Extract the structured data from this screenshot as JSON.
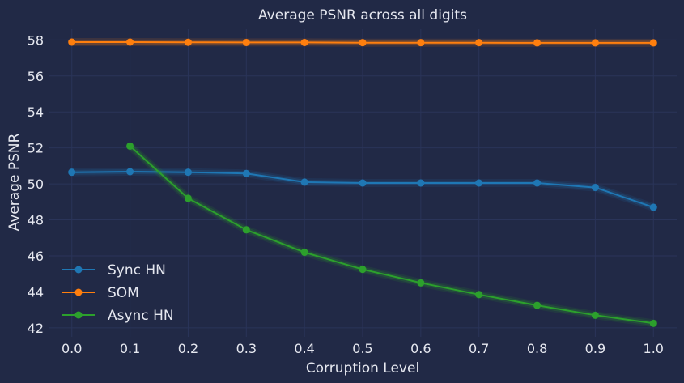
{
  "chart_data": {
    "type": "line",
    "title": "Average PSNR across all digits",
    "xlabel": "Corruption Level",
    "ylabel": "Average PSNR",
    "xlim": [
      -0.04,
      1.04
    ],
    "ylim": [
      41.5,
      58.6
    ],
    "xticks": [
      "0.0",
      "0.1",
      "0.2",
      "0.3",
      "0.4",
      "0.5",
      "0.6",
      "0.7",
      "0.8",
      "0.9",
      "1.0"
    ],
    "yticks": [
      "42",
      "44",
      "46",
      "48",
      "50",
      "52",
      "54",
      "56",
      "58"
    ],
    "grid": true,
    "legend_position": "lower-left",
    "series": [
      {
        "name": "Sync HN",
        "color": "#1f77b4",
        "x": [
          0.0,
          0.1,
          0.2,
          0.3,
          0.4,
          0.5,
          0.6,
          0.7,
          0.8,
          0.9,
          1.0
        ],
        "y": [
          50.65,
          50.68,
          50.65,
          50.58,
          50.1,
          50.05,
          50.05,
          50.05,
          50.05,
          49.8,
          48.7
        ]
      },
      {
        "name": "SOM",
        "color": "#ff7f0e",
        "x": [
          0.0,
          0.1,
          0.2,
          0.3,
          0.4,
          0.5,
          0.6,
          0.7,
          0.8,
          0.9,
          1.0
        ],
        "y": [
          57.88,
          57.88,
          57.87,
          57.86,
          57.86,
          57.85,
          57.85,
          57.85,
          57.84,
          57.84,
          57.84
        ]
      },
      {
        "name": "Async HN",
        "color": "#2ca02c",
        "x": [
          0.1,
          0.2,
          0.3,
          0.4,
          0.5,
          0.6,
          0.7,
          0.8,
          0.9,
          1.0
        ],
        "y": [
          52.1,
          49.2,
          47.45,
          46.2,
          45.25,
          44.5,
          43.85,
          43.25,
          42.7,
          42.25
        ]
      }
    ]
  }
}
